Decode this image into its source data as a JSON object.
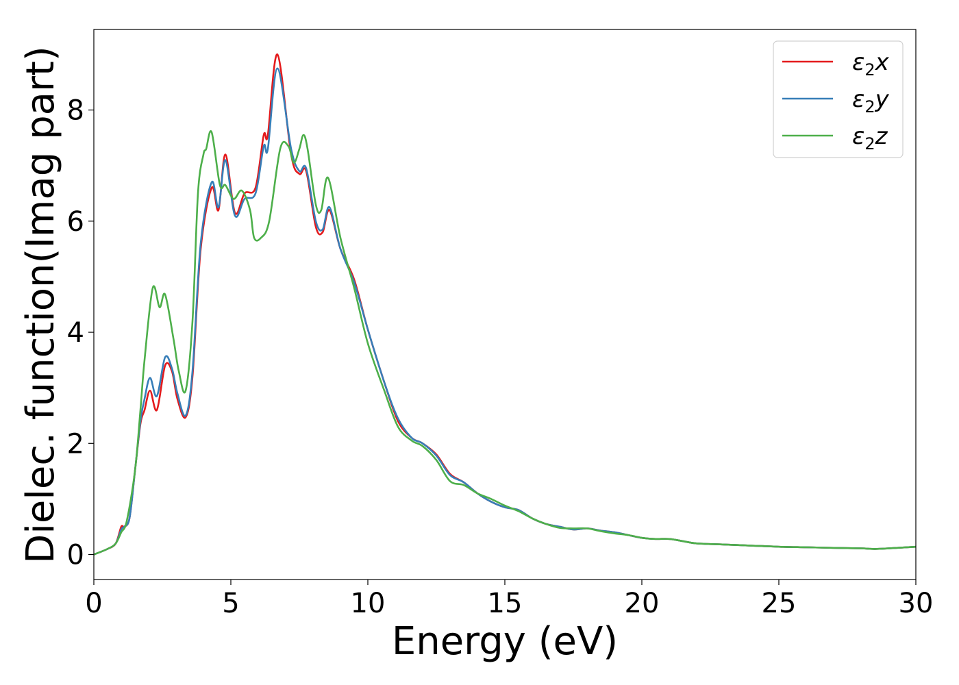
{
  "chart_data": {
    "type": "line",
    "title": "",
    "xlabel": "Energy (eV)",
    "ylabel": "Dielec. function(Imag part)",
    "xlim": [
      0,
      30
    ],
    "ylim": [
      -0.45,
      9.45
    ],
    "xticks": [
      0,
      5,
      10,
      15,
      20,
      25,
      30
    ],
    "yticks": [
      0,
      2,
      4,
      6,
      8
    ],
    "grid": false,
    "legend_position": "top-right",
    "series": [
      {
        "name": "ε₂x",
        "label_base": "ε",
        "label_sub": "2",
        "label_var": "x",
        "color": "#e41a1c",
        "points": [
          [
            0,
            0
          ],
          [
            0.5,
            0.1
          ],
          [
            0.8,
            0.2
          ],
          [
            1.0,
            0.5
          ],
          [
            1.1,
            0.5
          ],
          [
            1.3,
            0.65
          ],
          [
            1.5,
            1.5
          ],
          [
            1.7,
            2.35
          ],
          [
            1.85,
            2.6
          ],
          [
            2.05,
            2.95
          ],
          [
            2.3,
            2.6
          ],
          [
            2.6,
            3.4
          ],
          [
            2.85,
            3.3
          ],
          [
            3.05,
            2.8
          ],
          [
            3.35,
            2.47
          ],
          [
            3.6,
            3.2
          ],
          [
            3.9,
            5.5
          ],
          [
            4.3,
            6.6
          ],
          [
            4.55,
            6.2
          ],
          [
            4.8,
            7.2
          ],
          [
            5.15,
            6.15
          ],
          [
            5.5,
            6.5
          ],
          [
            5.9,
            6.6
          ],
          [
            6.2,
            7.55
          ],
          [
            6.35,
            7.55
          ],
          [
            6.7,
            9.0
          ],
          [
            7.2,
            7.2
          ],
          [
            7.5,
            6.85
          ],
          [
            7.75,
            6.9
          ],
          [
            8.1,
            5.9
          ],
          [
            8.35,
            5.8
          ],
          [
            8.6,
            6.2
          ],
          [
            9.0,
            5.5
          ],
          [
            9.5,
            4.95
          ],
          [
            10.0,
            4.05
          ],
          [
            10.6,
            3.1
          ],
          [
            11.1,
            2.4
          ],
          [
            11.6,
            2.1
          ],
          [
            12.0,
            2.0
          ],
          [
            12.5,
            1.8
          ],
          [
            13.0,
            1.45
          ],
          [
            13.5,
            1.3
          ],
          [
            14.0,
            1.1
          ],
          [
            14.5,
            0.95
          ],
          [
            15.0,
            0.85
          ],
          [
            15.5,
            0.8
          ],
          [
            16.0,
            0.65
          ],
          [
            16.5,
            0.55
          ],
          [
            17.0,
            0.5
          ],
          [
            17.5,
            0.45
          ],
          [
            18.0,
            0.47
          ],
          [
            18.5,
            0.43
          ],
          [
            19.0,
            0.4
          ],
          [
            19.5,
            0.35
          ],
          [
            20.0,
            0.3
          ],
          [
            20.5,
            0.28
          ],
          [
            21.0,
            0.28
          ],
          [
            21.5,
            0.24
          ],
          [
            22.0,
            0.2
          ],
          [
            23.0,
            0.18
          ],
          [
            24.0,
            0.16
          ],
          [
            25.0,
            0.14
          ],
          [
            26.0,
            0.13
          ],
          [
            27.0,
            0.12
          ],
          [
            28.0,
            0.11
          ],
          [
            28.5,
            0.1
          ],
          [
            29.0,
            0.11
          ],
          [
            30.0,
            0.14
          ]
        ]
      },
      {
        "name": "ε₂y",
        "label_base": "ε",
        "label_sub": "2",
        "label_var": "y",
        "color": "#377eb8",
        "points": [
          [
            0,
            0
          ],
          [
            0.5,
            0.1
          ],
          [
            0.8,
            0.2
          ],
          [
            1.0,
            0.45
          ],
          [
            1.1,
            0.5
          ],
          [
            1.3,
            0.65
          ],
          [
            1.5,
            1.5
          ],
          [
            1.7,
            2.4
          ],
          [
            1.85,
            2.8
          ],
          [
            2.05,
            3.18
          ],
          [
            2.3,
            2.85
          ],
          [
            2.6,
            3.55
          ],
          [
            2.85,
            3.35
          ],
          [
            3.05,
            2.9
          ],
          [
            3.35,
            2.5
          ],
          [
            3.6,
            3.3
          ],
          [
            3.9,
            5.6
          ],
          [
            4.3,
            6.7
          ],
          [
            4.55,
            6.25
          ],
          [
            4.8,
            7.1
          ],
          [
            5.15,
            6.1
          ],
          [
            5.5,
            6.4
          ],
          [
            5.9,
            6.5
          ],
          [
            6.2,
            7.35
          ],
          [
            6.35,
            7.3
          ],
          [
            6.7,
            8.75
          ],
          [
            7.2,
            7.3
          ],
          [
            7.5,
            6.9
          ],
          [
            7.75,
            6.95
          ],
          [
            8.1,
            6.0
          ],
          [
            8.35,
            5.85
          ],
          [
            8.6,
            6.25
          ],
          [
            9.0,
            5.5
          ],
          [
            9.5,
            4.9
          ],
          [
            10.0,
            4.05
          ],
          [
            10.6,
            3.1
          ],
          [
            11.1,
            2.45
          ],
          [
            11.6,
            2.1
          ],
          [
            12.0,
            2.0
          ],
          [
            12.5,
            1.78
          ],
          [
            13.0,
            1.43
          ],
          [
            13.5,
            1.3
          ],
          [
            14.0,
            1.1
          ],
          [
            14.5,
            0.95
          ],
          [
            15.0,
            0.85
          ],
          [
            15.5,
            0.8
          ],
          [
            16.0,
            0.65
          ],
          [
            16.5,
            0.55
          ],
          [
            17.0,
            0.5
          ],
          [
            17.5,
            0.45
          ],
          [
            18.0,
            0.47
          ],
          [
            18.5,
            0.43
          ],
          [
            19.0,
            0.4
          ],
          [
            19.5,
            0.35
          ],
          [
            20.0,
            0.3
          ],
          [
            20.5,
            0.28
          ],
          [
            21.0,
            0.28
          ],
          [
            21.5,
            0.24
          ],
          [
            22.0,
            0.2
          ],
          [
            23.0,
            0.18
          ],
          [
            24.0,
            0.16
          ],
          [
            25.0,
            0.14
          ],
          [
            26.0,
            0.13
          ],
          [
            27.0,
            0.12
          ],
          [
            28.0,
            0.11
          ],
          [
            28.5,
            0.1
          ],
          [
            29.0,
            0.11
          ],
          [
            30.0,
            0.14
          ]
        ]
      },
      {
        "name": "ε₂z",
        "label_base": "ε",
        "label_sub": "2",
        "label_var": "z",
        "color": "#4daf4a",
        "points": [
          [
            0,
            0
          ],
          [
            0.5,
            0.1
          ],
          [
            0.8,
            0.2
          ],
          [
            1.0,
            0.4
          ],
          [
            1.2,
            0.6
          ],
          [
            1.5,
            1.5
          ],
          [
            1.7,
            2.6
          ],
          [
            1.85,
            3.5
          ],
          [
            2.15,
            4.8
          ],
          [
            2.4,
            4.45
          ],
          [
            2.6,
            4.68
          ],
          [
            2.9,
            3.9
          ],
          [
            3.1,
            3.3
          ],
          [
            3.35,
            2.95
          ],
          [
            3.6,
            4.2
          ],
          [
            3.8,
            6.5
          ],
          [
            4.0,
            7.2
          ],
          [
            4.1,
            7.3
          ],
          [
            4.3,
            7.6
          ],
          [
            4.6,
            6.65
          ],
          [
            4.8,
            6.65
          ],
          [
            5.1,
            6.4
          ],
          [
            5.4,
            6.55
          ],
          [
            5.7,
            6.2
          ],
          [
            5.85,
            5.7
          ],
          [
            6.1,
            5.7
          ],
          [
            6.4,
            6.0
          ],
          [
            6.8,
            7.3
          ],
          [
            7.1,
            7.35
          ],
          [
            7.3,
            7.05
          ],
          [
            7.5,
            7.3
          ],
          [
            7.65,
            7.55
          ],
          [
            7.8,
            7.3
          ],
          [
            8.1,
            6.3
          ],
          [
            8.3,
            6.2
          ],
          [
            8.55,
            6.78
          ],
          [
            9.0,
            5.7
          ],
          [
            9.5,
            4.8
          ],
          [
            10.0,
            3.8
          ],
          [
            10.6,
            2.95
          ],
          [
            11.1,
            2.3
          ],
          [
            11.6,
            2.05
          ],
          [
            12.0,
            1.95
          ],
          [
            12.5,
            1.7
          ],
          [
            13.0,
            1.32
          ],
          [
            13.5,
            1.25
          ],
          [
            14.0,
            1.1
          ],
          [
            14.5,
            1.0
          ],
          [
            15.0,
            0.88
          ],
          [
            15.5,
            0.78
          ],
          [
            16.0,
            0.65
          ],
          [
            16.5,
            0.55
          ],
          [
            17.0,
            0.48
          ],
          [
            17.5,
            0.47
          ],
          [
            18.0,
            0.47
          ],
          [
            18.5,
            0.42
          ],
          [
            19.0,
            0.38
          ],
          [
            19.5,
            0.35
          ],
          [
            20.0,
            0.3
          ],
          [
            20.5,
            0.28
          ],
          [
            21.0,
            0.28
          ],
          [
            21.5,
            0.24
          ],
          [
            22.0,
            0.2
          ],
          [
            23.0,
            0.18
          ],
          [
            24.0,
            0.16
          ],
          [
            25.0,
            0.14
          ],
          [
            26.0,
            0.13
          ],
          [
            27.0,
            0.12
          ],
          [
            28.0,
            0.11
          ],
          [
            28.5,
            0.1
          ],
          [
            29.0,
            0.11
          ],
          [
            30.0,
            0.14
          ]
        ]
      }
    ]
  }
}
